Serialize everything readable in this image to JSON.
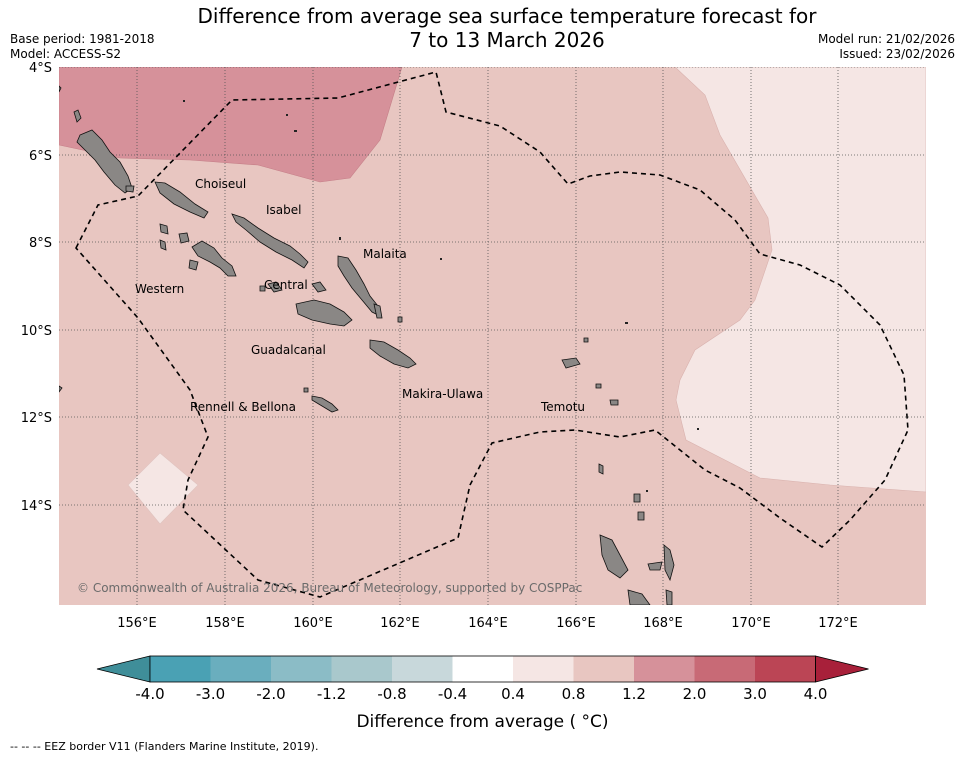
{
  "title_line1": "Difference from average sea surface temperature forecast for",
  "title_line2": "7 to 13 March 2026",
  "base_period": "Base period: 1981-2018",
  "model": "Model: ACCESS-S2",
  "model_run": "Model run: 21/02/2026",
  "issued": "Issued: 23/02/2026",
  "copyright": "© Commonwealth of Australia 2026, Bureau of Meteorology, supported by COSPPac",
  "lat_ticks": [
    "4°S",
    "6°S",
    "8°S",
    "10°S",
    "12°S",
    "14°S"
  ],
  "lon_ticks": [
    "156°E",
    "158°E",
    "160°E",
    "162°E",
    "164°E",
    "166°E",
    "168°E",
    "170°E",
    "172°E"
  ],
  "provinces": [
    "Choiseul",
    "Isabel",
    "Malaita",
    "Western",
    "Central",
    "Guadalcanal",
    "Makira-Ulawa",
    "Rennell & Bellona",
    "Temotu"
  ],
  "colorbar": {
    "label": "Difference from average ( °C)",
    "ticks": [
      "-4.0",
      "-3.0",
      "-2.0",
      "-1.2",
      "-0.8",
      "-0.4",
      "0.4",
      "0.8",
      "1.2",
      "2.0",
      "3.0",
      "4.0"
    ],
    "colors": [
      "#3f8e99",
      "#4aa1b4",
      "#6aaebe",
      "#8bbcc6",
      "#a9c8cc",
      "#c8d8db",
      "#ffffff",
      "#f5e6e4",
      "#e8c6c1",
      "#d6919a",
      "#c86a76",
      "#bb4555",
      "#a8203a"
    ]
  },
  "legend_note": "--  --  -- EEZ border V11 (Flanders Marine Institute, 2019).",
  "colors": {
    "land": "#8a8785",
    "anomaly_0_8_1_2": "#e8c6c1",
    "anomaly_1_2_2_0": "#d6919a",
    "anomaly_0_4_0_8": "#f5e6e4"
  }
}
